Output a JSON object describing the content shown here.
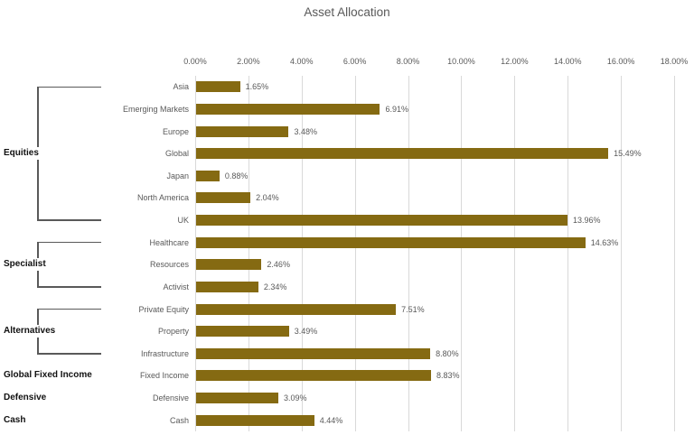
{
  "title": "Asset Allocation",
  "chart_data": {
    "type": "bar",
    "orientation": "horizontal",
    "title": "Asset Allocation",
    "xlabel": "",
    "ylabel": "",
    "grid": true,
    "legend": false,
    "x_axis": {
      "min": 0,
      "max": 18,
      "step": 2,
      "ticks": [
        "0.00%",
        "2.00%",
        "4.00%",
        "6.00%",
        "8.00%",
        "10.00%",
        "12.00%",
        "14.00%",
        "16.00%",
        "18.00%"
      ]
    },
    "categories": [
      "Asia",
      "Emerging Markets",
      "Europe",
      "Global",
      "Japan",
      "North America",
      "UK",
      "Healthcare",
      "Resources",
      "Activist",
      "Private Equity",
      "Property",
      "Infrastructure",
      "Fixed Income",
      "Defensive",
      "Cash"
    ],
    "values": [
      1.65,
      6.91,
      3.48,
      15.49,
      0.88,
      2.04,
      13.96,
      14.63,
      2.46,
      2.34,
      7.51,
      3.49,
      8.8,
      8.83,
      3.09,
      4.44
    ],
    "value_labels": [
      "1.65%",
      "6.91%",
      "3.48%",
      "15.49%",
      "0.88%",
      "2.04%",
      "13.96%",
      "14.63%",
      "2.46%",
      "2.34%",
      "7.51%",
      "3.49%",
      "8.80%",
      "8.83%",
      "3.09%",
      "4.44%"
    ],
    "groups": [
      {
        "label": "Equities",
        "start": 0,
        "end": 6,
        "bracket": true
      },
      {
        "label": "Specialist",
        "start": 7,
        "end": 9,
        "bracket": true
      },
      {
        "label": "Alternatives",
        "start": 10,
        "end": 12,
        "bracket": true
      },
      {
        "label": "Global Fixed Income",
        "start": 13,
        "end": 13,
        "bracket": false
      },
      {
        "label": "Defensive",
        "start": 14,
        "end": 14,
        "bracket": false
      },
      {
        "label": "Cash",
        "start": 15,
        "end": 15,
        "bracket": false
      }
    ],
    "colors": {
      "bar": "#856a12",
      "gridline": "#d9d9d9",
      "axis_text": "#595959",
      "category_text": "#595959",
      "value_text": "#595959",
      "group_text": "#111111",
      "bracket_line": "#595959",
      "title_text": "#595959"
    }
  }
}
